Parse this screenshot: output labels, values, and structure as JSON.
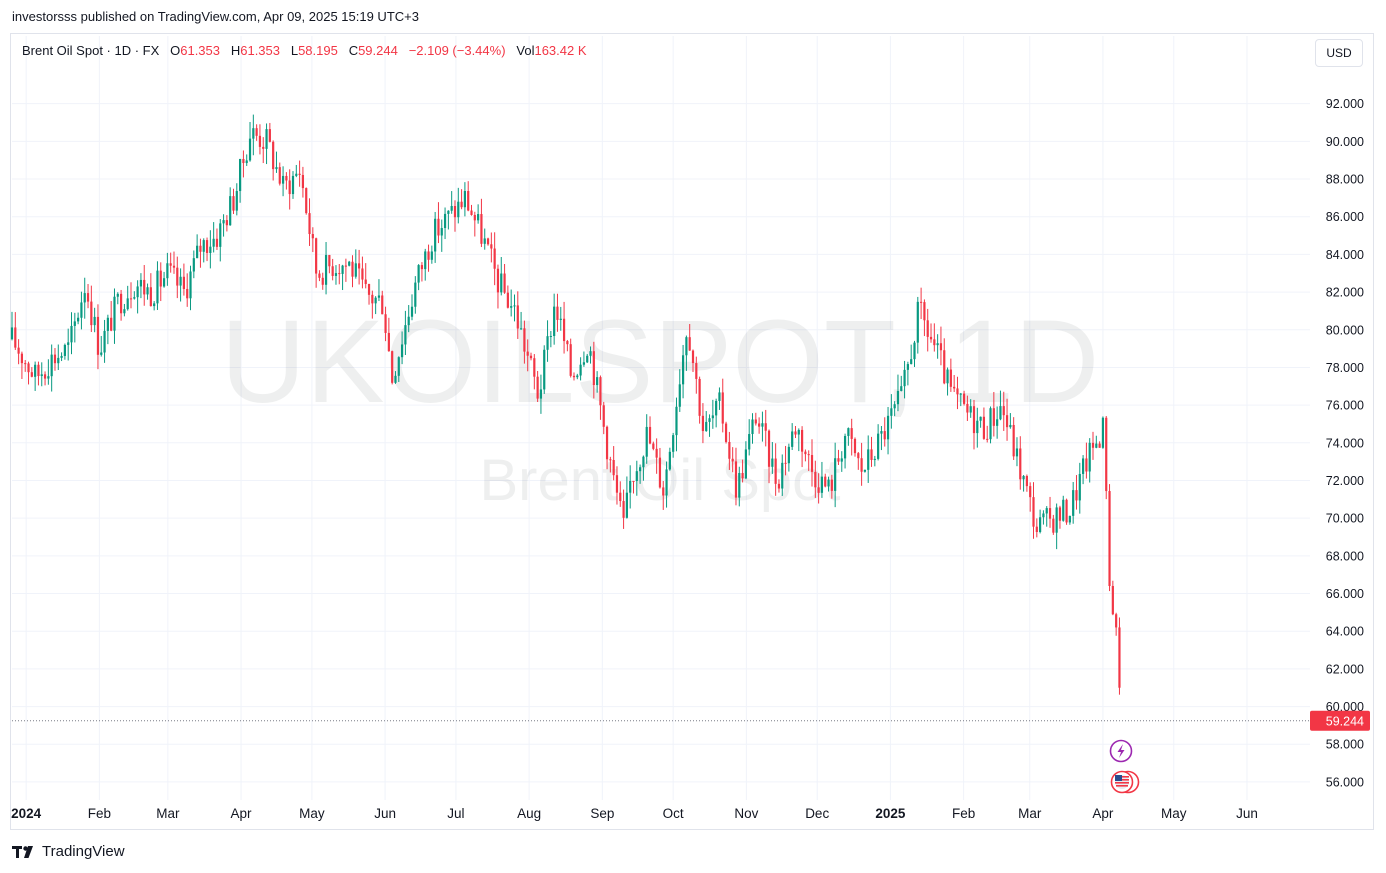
{
  "header": {
    "published": "investorsss published on TradingView.com, Apr 09, 2025 15:19 UTC+3"
  },
  "legend": {
    "symbol": "Brent Oil Spot · 1D · FX",
    "o_label": "O",
    "o_value": "61.353",
    "h_label": "H",
    "h_value": "61.353",
    "l_label": "L",
    "l_value": "58.195",
    "c_label": "C",
    "c_value": "59.244",
    "change": "−2.109 (−3.44%)",
    "vol_label": "Vol",
    "vol_value": "163.42 K"
  },
  "currency_button": "USD",
  "watermark": {
    "line1": "UKOILSPOT, 1D",
    "line2": "Brent Oil Spot"
  },
  "footer": {
    "brand": "TradingView"
  },
  "colors": {
    "up": "#089981",
    "down": "#f23645",
    "grid": "#f0f3fa",
    "price_tag": "#f23645"
  },
  "chart_data": {
    "type": "candlestick",
    "y_ticks": [
      "56.000",
      "58.000",
      "60.000",
      "62.000",
      "64.000",
      "66.000",
      "68.000",
      "70.000",
      "72.000",
      "74.000",
      "76.000",
      "78.000",
      "80.000",
      "82.000",
      "84.000",
      "86.000",
      "88.000",
      "90.000",
      "92.000"
    ],
    "ylim": [
      55.2,
      94.0
    ],
    "x_ticks": [
      {
        "label": "2024",
        "date": "2024-01-01",
        "bold": true
      },
      {
        "label": "Feb",
        "date": "2024-02-01"
      },
      {
        "label": "Mar",
        "date": "2024-03-01"
      },
      {
        "label": "Apr",
        "date": "2024-04-01"
      },
      {
        "label": "May",
        "date": "2024-05-01"
      },
      {
        "label": "Jun",
        "date": "2024-06-01"
      },
      {
        "label": "Jul",
        "date": "2024-07-01"
      },
      {
        "label": "Aug",
        "date": "2024-08-01"
      },
      {
        "label": "Sep",
        "date": "2024-09-01"
      },
      {
        "label": "Oct",
        "date": "2024-10-01"
      },
      {
        "label": "Nov",
        "date": "2024-11-01"
      },
      {
        "label": "Dec",
        "date": "2024-12-01"
      },
      {
        "label": "2025",
        "date": "2025-01-01",
        "bold": true
      },
      {
        "label": "Feb",
        "date": "2025-02-01"
      },
      {
        "label": "Mar",
        "date": "2025-03-01"
      },
      {
        "label": "Apr",
        "date": "2025-04-01"
      },
      {
        "label": "May",
        "date": "2025-05-01"
      },
      {
        "label": "Jun",
        "date": "2025-06-01"
      }
    ],
    "last_price": 59.244,
    "last_price_label": "59.244",
    "close_path": [
      [
        "2023-12-26",
        79.5
      ],
      [
        "2024-01-05",
        77.5
      ],
      [
        "2024-01-12",
        78.5
      ],
      [
        "2024-01-19",
        79.0
      ],
      [
        "2024-01-26",
        82.5
      ],
      [
        "2024-02-01",
        79.0
      ],
      [
        "2024-02-09",
        81.5
      ],
      [
        "2024-02-16",
        82.5
      ],
      [
        "2024-02-23",
        82.0
      ],
      [
        "2024-03-01",
        83.0
      ],
      [
        "2024-03-08",
        82.0
      ],
      [
        "2024-03-15",
        84.5
      ],
      [
        "2024-03-22",
        85.0
      ],
      [
        "2024-03-29",
        87.0
      ],
      [
        "2024-04-05",
        90.5
      ],
      [
        "2024-04-12",
        90.0
      ],
      [
        "2024-04-19",
        87.5
      ],
      [
        "2024-04-26",
        88.5
      ],
      [
        "2024-05-03",
        83.0
      ],
      [
        "2024-05-10",
        83.5
      ],
      [
        "2024-05-17",
        83.5
      ],
      [
        "2024-05-24",
        81.8
      ],
      [
        "2024-05-31",
        81.5
      ],
      [
        "2024-06-04",
        77.5
      ],
      [
        "2024-06-14",
        82.5
      ],
      [
        "2024-06-21",
        85.0
      ],
      [
        "2024-06-28",
        86.0
      ],
      [
        "2024-07-05",
        87.0
      ],
      [
        "2024-07-12",
        85.0
      ],
      [
        "2024-07-19",
        82.5
      ],
      [
        "2024-07-26",
        81.0
      ],
      [
        "2024-08-05",
        76.5
      ],
      [
        "2024-08-12",
        81.5
      ],
      [
        "2024-08-19",
        77.5
      ],
      [
        "2024-08-26",
        79.5
      ],
      [
        "2024-09-05",
        72.5
      ],
      [
        "2024-09-10",
        69.5
      ],
      [
        "2024-09-13",
        72.0
      ],
      [
        "2024-09-20",
        74.5
      ],
      [
        "2024-09-27",
        71.5
      ],
      [
        "2024-10-07",
        80.5
      ],
      [
        "2024-10-14",
        74.5
      ],
      [
        "2024-10-21",
        76.0
      ],
      [
        "2024-10-28",
        71.5
      ],
      [
        "2024-11-05",
        75.5
      ],
      [
        "2024-11-14",
        72.0
      ],
      [
        "2024-11-22",
        75.0
      ],
      [
        "2024-11-29",
        72.5
      ],
      [
        "2024-12-06",
        71.5
      ],
      [
        "2024-12-13",
        74.5
      ],
      [
        "2024-12-20",
        72.5
      ],
      [
        "2024-12-27",
        74.0
      ],
      [
        "2025-01-06",
        76.5
      ],
      [
        "2025-01-13",
        81.0
      ],
      [
        "2025-01-20",
        79.0
      ],
      [
        "2025-01-27",
        76.5
      ],
      [
        "2025-02-03",
        75.5
      ],
      [
        "2025-02-10",
        74.8
      ],
      [
        "2025-02-17",
        76.0
      ],
      [
        "2025-02-24",
        73.0
      ],
      [
        "2025-03-04",
        69.5
      ],
      [
        "2025-03-11",
        70.0
      ],
      [
        "2025-03-18",
        70.5
      ],
      [
        "2025-03-25",
        73.0
      ],
      [
        "2025-04-01",
        74.8
      ],
      [
        "2025-04-03",
        70.0
      ],
      [
        "2025-04-04",
        65.5
      ],
      [
        "2025-04-07",
        64.0
      ],
      [
        "2025-04-08",
        61.0
      ],
      [
        "2025-04-09",
        59.244
      ]
    ]
  }
}
